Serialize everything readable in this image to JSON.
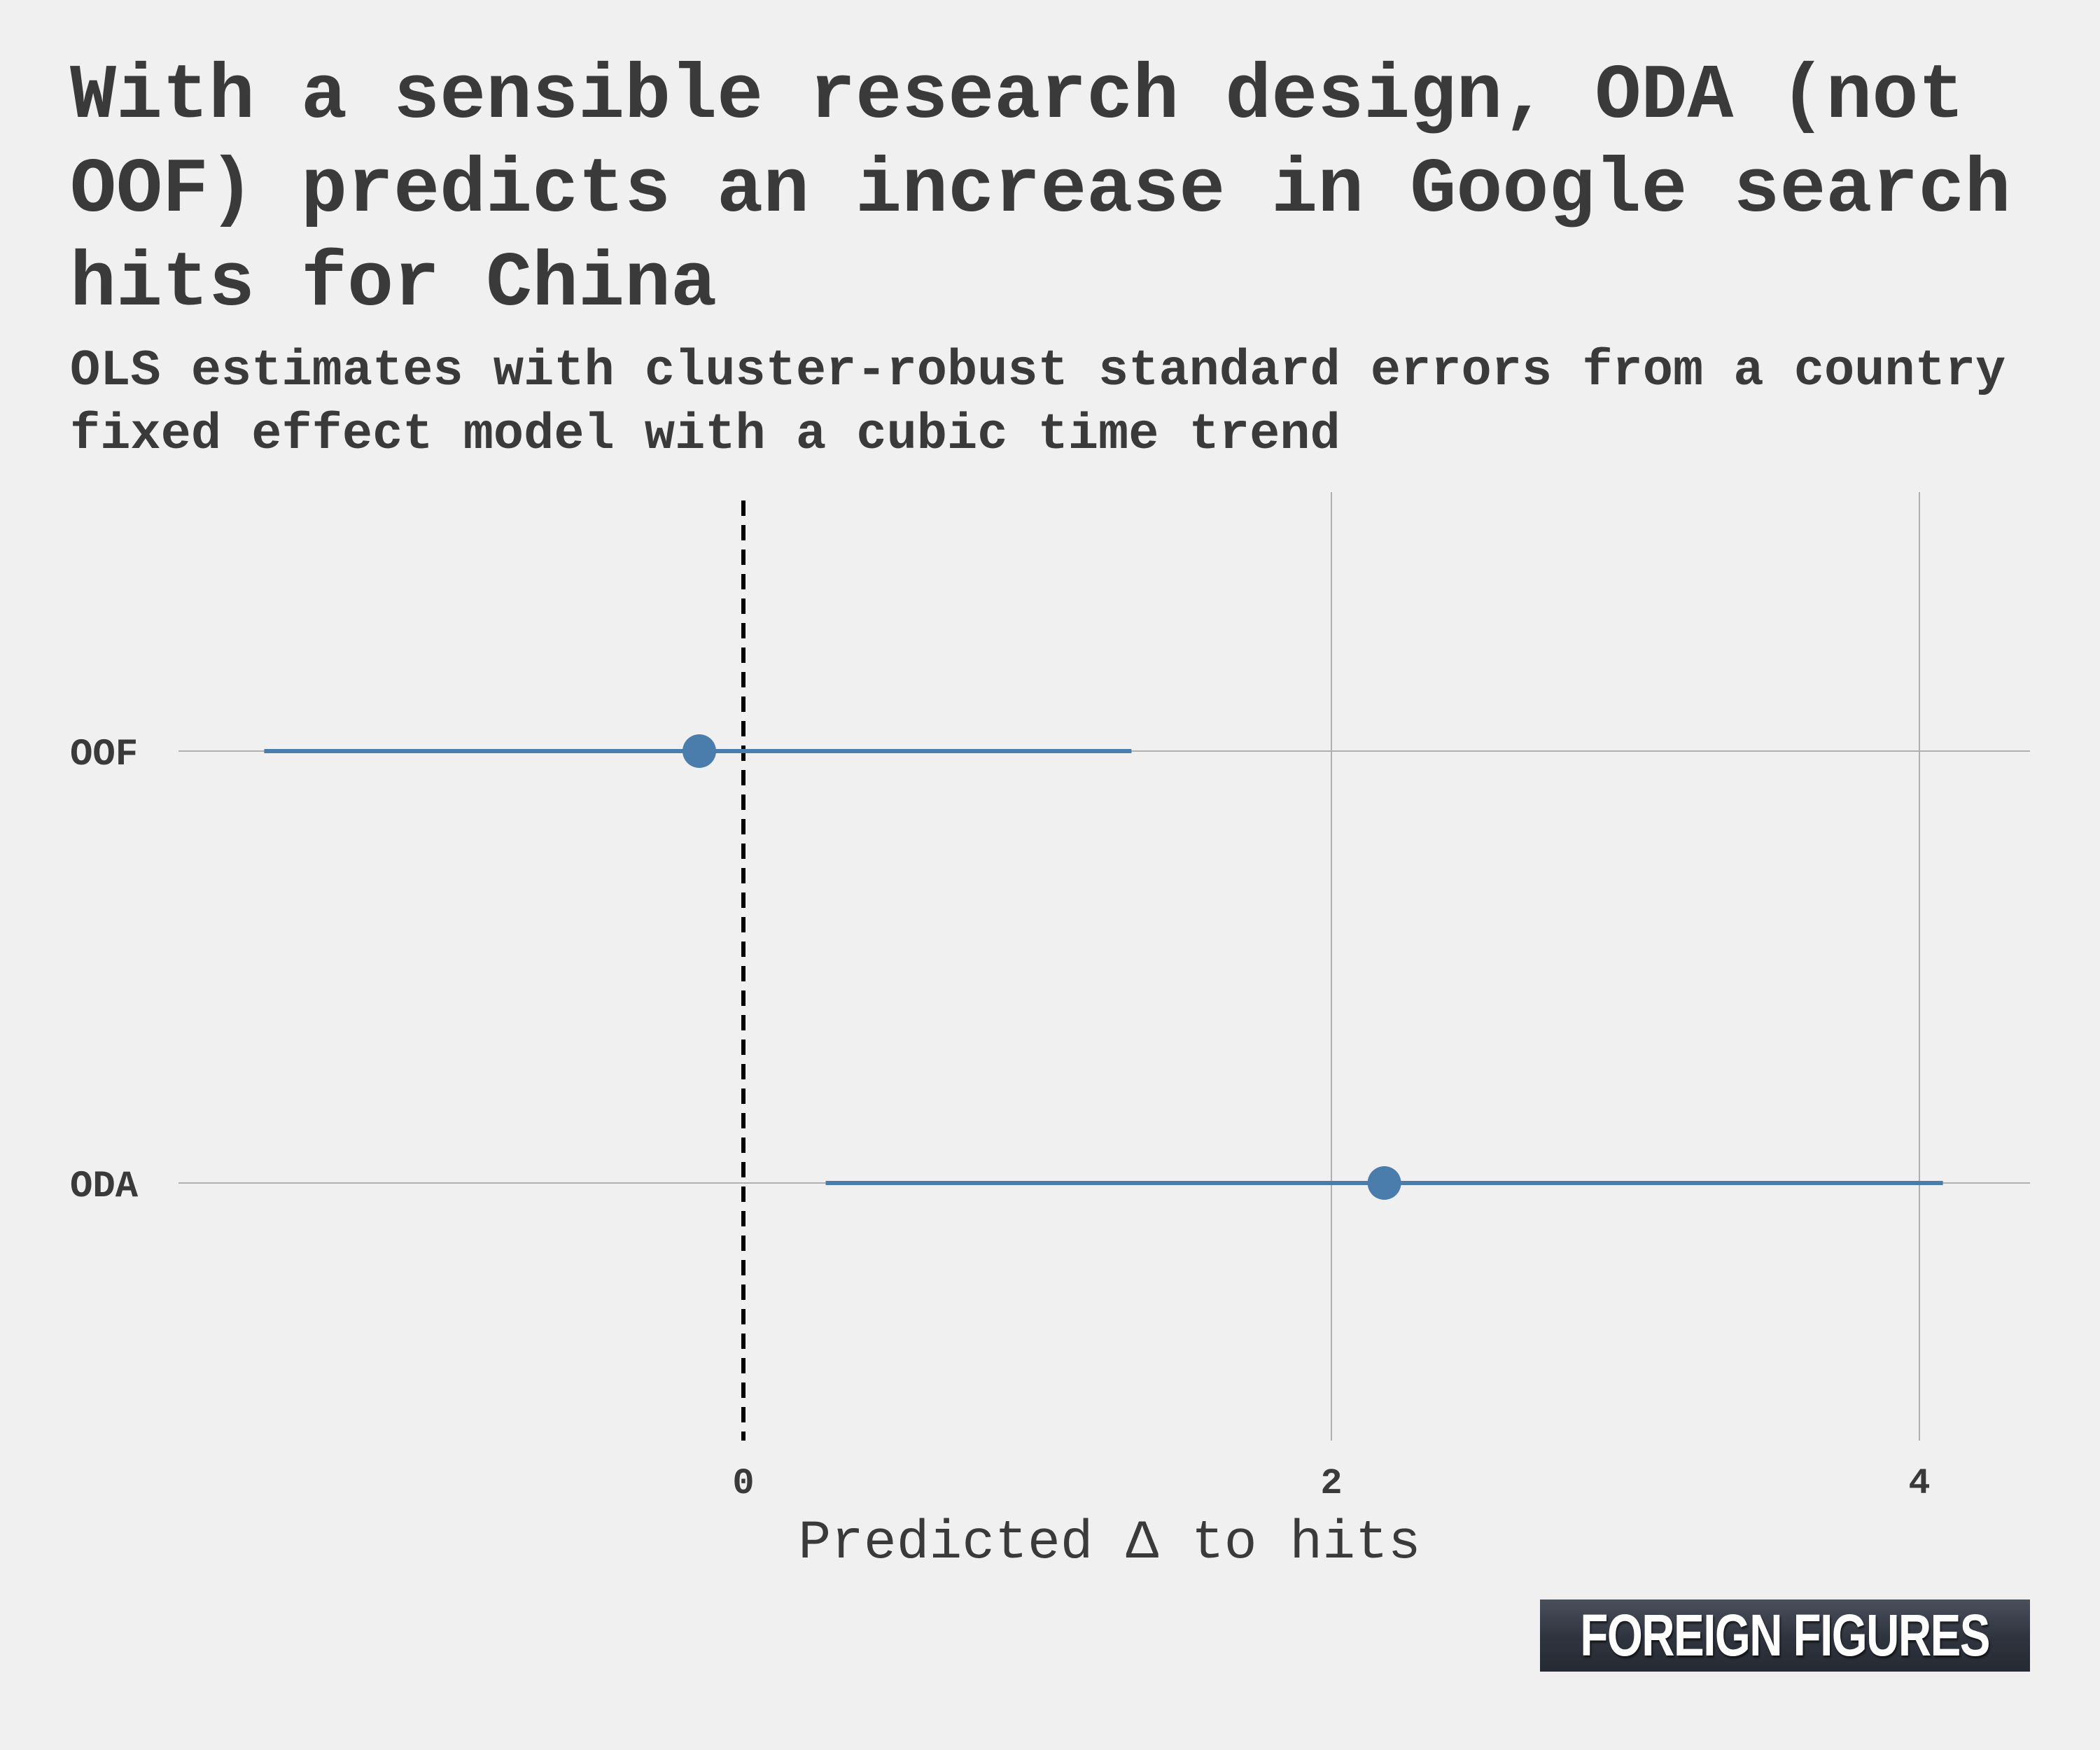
{
  "title": "With a sensible research design, ODA (not OOF) predicts an increase in Google search hits for China",
  "subtitle": "OLS estimates with cluster-robust standard errors from a country fixed effect model with a cubic time trend",
  "brand": "FOREIGN FIGURES",
  "colors": {
    "background": "#f0f0f0",
    "point": "#4a7cac",
    "grid": "#b0b0b0",
    "reference_line": "#000000"
  },
  "chart_data": {
    "type": "scatter",
    "subtype": "coefficient-plot",
    "categories": [
      "OOF",
      "ODA"
    ],
    "estimates": [
      -0.15,
      2.18
    ],
    "ci_low": [
      -1.63,
      0.28
    ],
    "ci_high": [
      1.32,
      4.08
    ],
    "xlim": [
      -2.0,
      4.35
    ],
    "xticks": [
      0,
      2,
      4
    ],
    "xtick_labels": [
      "0",
      "2",
      "4"
    ],
    "reference_x": 0,
    "xlabel": "Predicted Δ to hits",
    "ylabel": ""
  }
}
